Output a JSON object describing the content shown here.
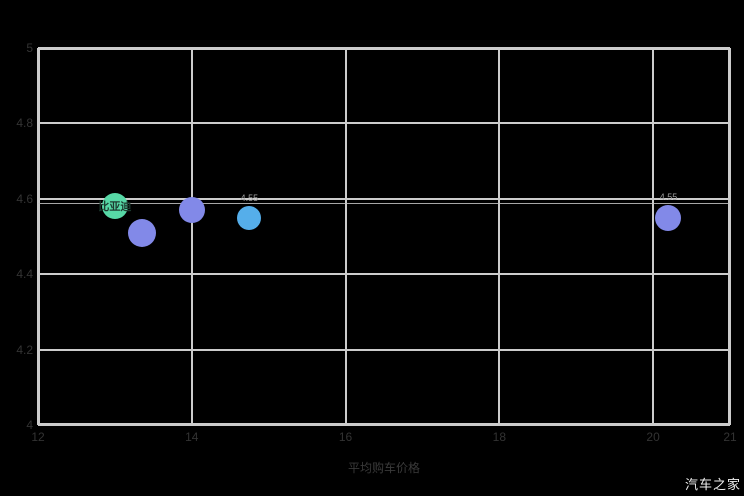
{
  "watermark": "汽车之家",
  "colors": {
    "background": "#000000",
    "grid": "#cccccc",
    "tick_text": "#333333",
    "green_dot": "#57d8a6",
    "purple_dot": "#8289e8",
    "sky_dot": "#55aeea",
    "watermark_text": "#f2f2f2"
  },
  "chart_data": {
    "type": "scatter",
    "title": "",
    "xlabel": "平均购车价格",
    "ylabel": "",
    "xlim": [
      12,
      21
    ],
    "ylim": [
      4,
      5
    ],
    "x_ticks": [
      12,
      14,
      16,
      18,
      20,
      21
    ],
    "x_tick_labels": [
      "12",
      "14",
      "16",
      "18",
      "20",
      "21"
    ],
    "y_ticks": [
      5,
      4.8,
      4.6,
      4.4,
      4.2,
      4
    ],
    "y_tick_labels": [
      "5",
      "4.8",
      "4.6",
      "4.4",
      "4.2",
      "4"
    ],
    "grid": true,
    "legend": "none",
    "reference_line_y": 4.59,
    "points": [
      {
        "x": 13.0,
        "y": 4.58,
        "r": 13,
        "color": "#57d8a6",
        "label": "比亚迪",
        "label_color": "#1d3b30",
        "label_pos": "center"
      },
      {
        "x": 13.35,
        "y": 4.51,
        "r": 14,
        "color": "#8289e8",
        "label": "",
        "label_color": "",
        "label_pos": "none"
      },
      {
        "x": 14.0,
        "y": 4.57,
        "r": 13,
        "color": "#8289e8",
        "label": "",
        "label_color": "",
        "label_pos": "none"
      },
      {
        "x": 14.75,
        "y": 4.55,
        "r": 12,
        "color": "#55aeea",
        "label": "4.55",
        "label_color": "#9c9c9c",
        "label_pos": "above"
      },
      {
        "x": 20.2,
        "y": 4.55,
        "r": 13,
        "color": "#8289e8",
        "label": "4.55",
        "label_color": "#9c9c9c",
        "label_pos": "above"
      }
    ]
  }
}
